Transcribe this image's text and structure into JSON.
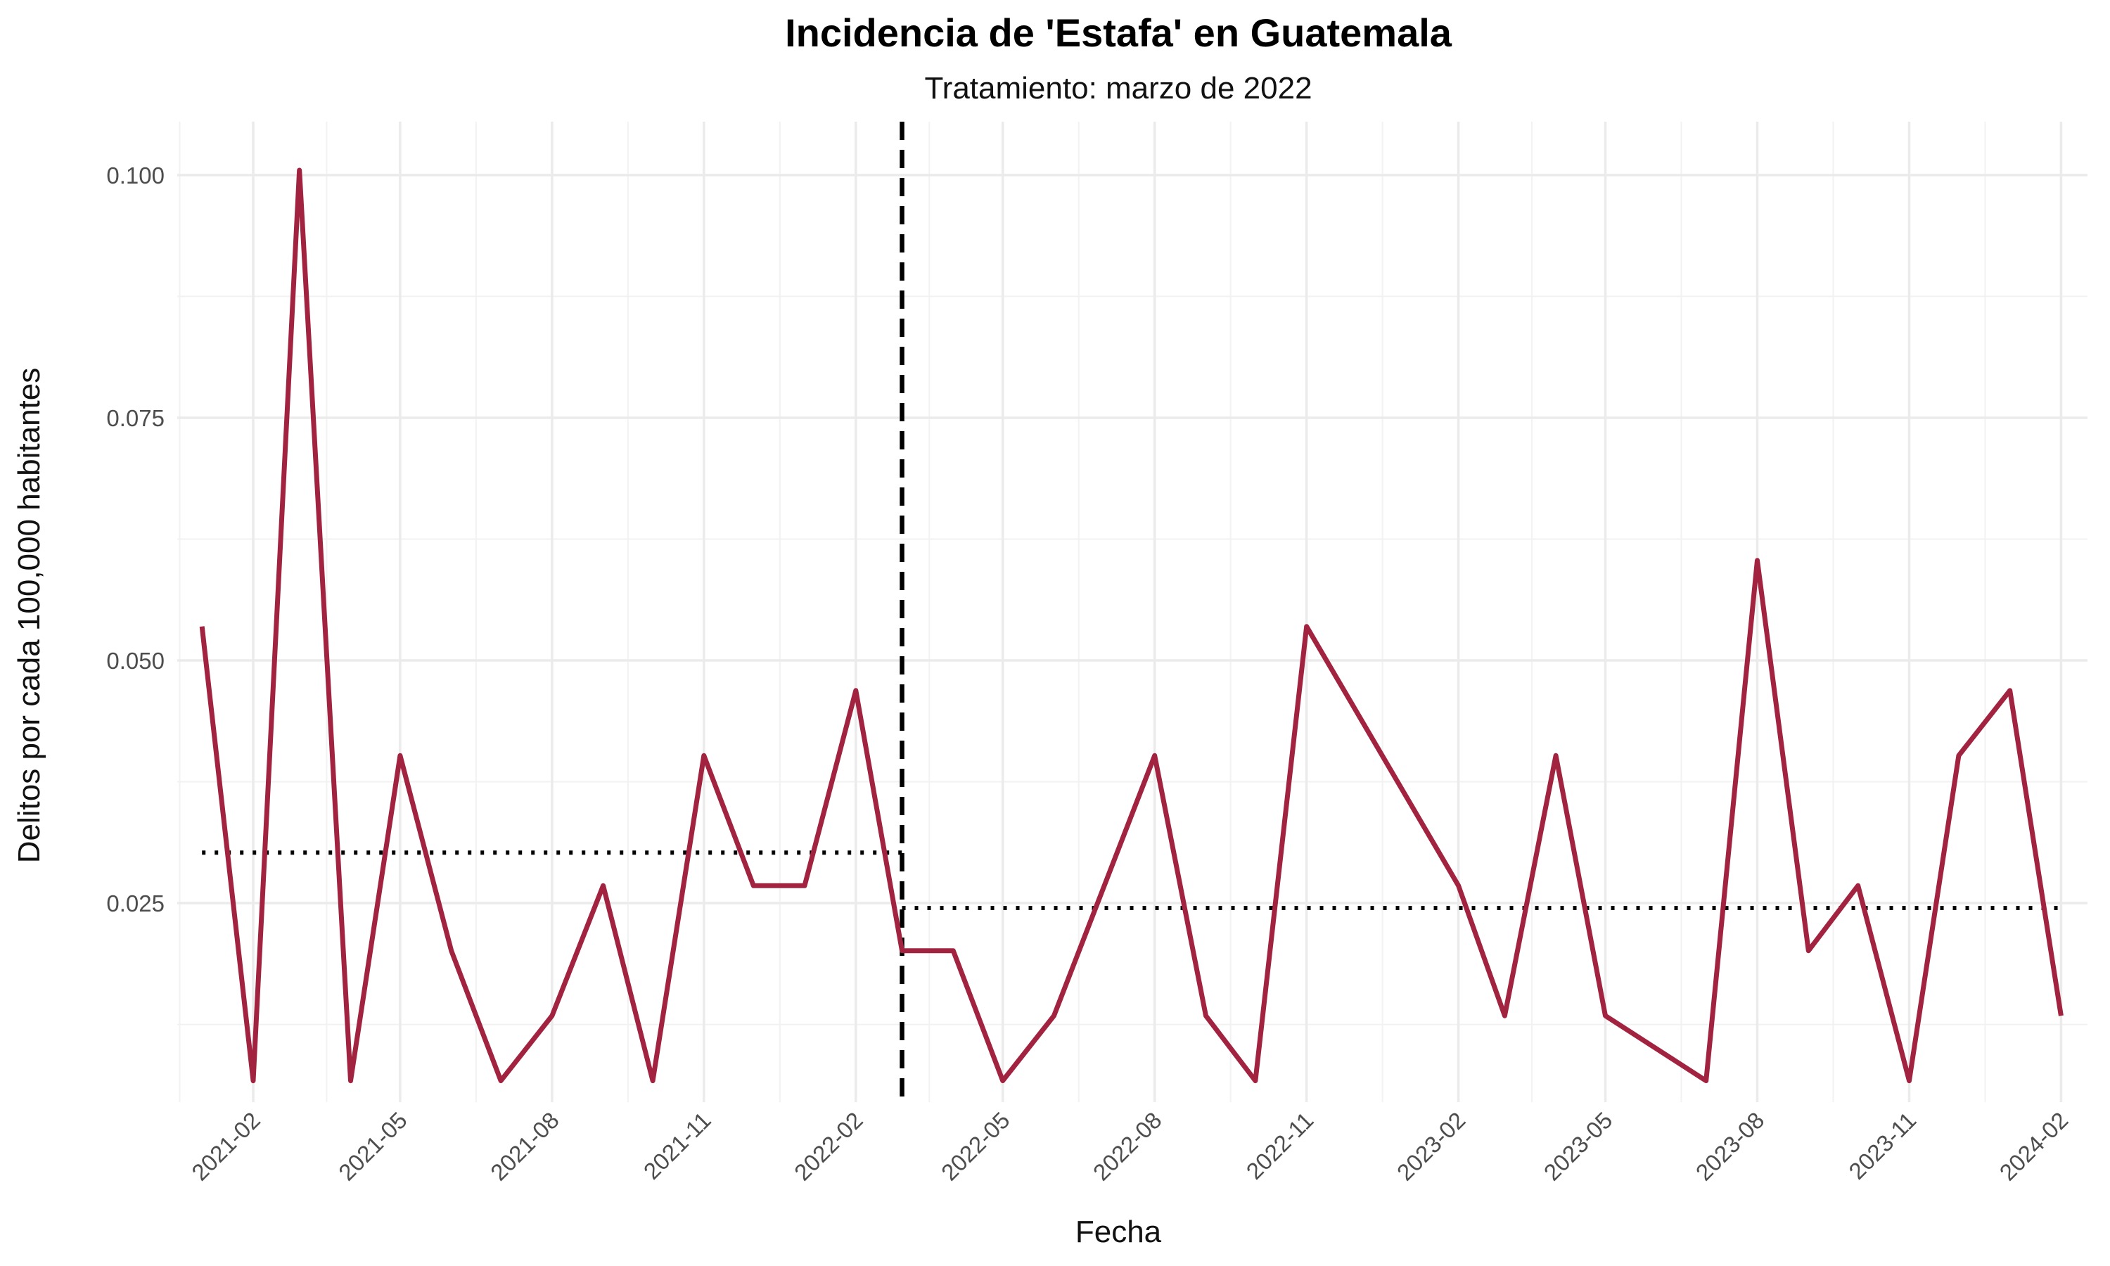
{
  "chart_data": {
    "type": "line",
    "title": "Incidencia de 'Estafa' en Guatemala",
    "subtitle": "Tratamiento: marzo de 2022",
    "xlabel": "Fecha",
    "ylabel": "Delitos por cada 100,000 habitantes",
    "x_ticks": [
      "2021-02",
      "2021-05",
      "2021-08",
      "2021-11",
      "2022-02",
      "2022-05",
      "2022-08",
      "2022-11",
      "2023-02",
      "2023-05",
      "2023-08",
      "2023-11",
      "2024-02"
    ],
    "y_ticks": [
      0.1,
      0.075,
      0.05,
      0.025
    ],
    "y_tick_labels": [
      "0.100",
      "0.075",
      "0.050",
      "0.025"
    ],
    "xlim": [
      "2020-12-17",
      "2024-02-17"
    ],
    "ylim": [
      0.0045,
      0.1055
    ],
    "grid": true,
    "series": [
      {
        "color": "#A2233F",
        "points": [
          [
            "2021-01-01",
            0.0535
          ],
          [
            "2021-02-01",
            0.0067
          ],
          [
            "2021-03-01",
            0.1005
          ],
          [
            "2021-04-01",
            0.0067
          ],
          [
            "2021-05-01",
            0.0402
          ],
          [
            "2021-06-01",
            0.0201
          ],
          [
            "2021-07-01",
            0.0067
          ],
          [
            "2021-08-01",
            0.0134
          ],
          [
            "2021-09-01",
            0.0268
          ],
          [
            "2021-10-01",
            0.0067
          ],
          [
            "2021-11-01",
            0.0402
          ],
          [
            "2021-12-01",
            0.0268
          ],
          [
            "2022-01-01",
            0.0268
          ],
          [
            "2022-02-01",
            0.0469
          ],
          [
            "2022-03-01",
            0.0201
          ],
          [
            "2022-04-01",
            0.0201
          ],
          [
            "2022-05-01",
            0.0067
          ],
          [
            "2022-06-01",
            0.0134
          ],
          [
            "2022-08-01",
            0.0402
          ],
          [
            "2022-09-01",
            0.0134
          ],
          [
            "2022-10-01",
            0.0067
          ],
          [
            "2022-11-01",
            0.0535
          ],
          [
            "2023-02-01",
            0.0268
          ],
          [
            "2023-03-01",
            0.0134
          ],
          [
            "2023-04-01",
            0.0402
          ],
          [
            "2023-05-01",
            0.0134
          ],
          [
            "2023-07-01",
            0.0067
          ],
          [
            "2023-08-01",
            0.0603
          ],
          [
            "2023-09-01",
            0.0201
          ],
          [
            "2023-10-01",
            0.0268
          ],
          [
            "2023-11-01",
            0.0067
          ],
          [
            "2023-12-01",
            0.0402
          ],
          [
            "2024-01-01",
            0.0469
          ],
          [
            "2024-02-01",
            0.0134
          ]
        ]
      }
    ],
    "mean_lines": [
      {
        "x_start": "2021-01-01",
        "x_end": "2022-03-01",
        "y": 0.0302,
        "style": "dotted",
        "color": "#000000"
      },
      {
        "x_start": "2022-03-01",
        "x_end": "2024-02-01",
        "y": 0.0245,
        "style": "dotted",
        "color": "#000000"
      }
    ],
    "treatment_line": {
      "x": "2022-03-01",
      "style": "dashed",
      "color": "#000000"
    }
  }
}
